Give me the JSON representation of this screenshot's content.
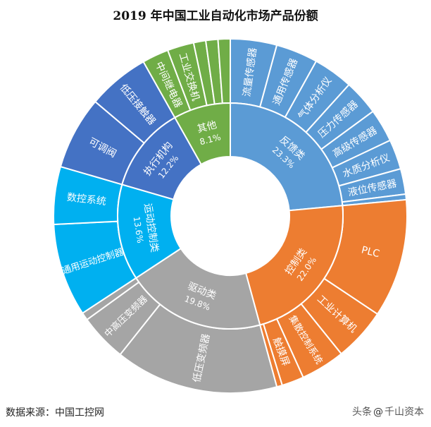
{
  "chart_data": {
    "type": "sunburst",
    "title": "2019 年中国工业自动化市场产品份额",
    "categories": [
      {
        "name": "反馈类",
        "value": 23.3,
        "value_label": "23.3%",
        "color": "#5b9bd5",
        "children": [
          {
            "name": "流量传感器",
            "value": 4.2
          },
          {
            "name": "通用传感器",
            "value": 3.8
          },
          {
            "name": "气体分析仪",
            "value": 3.6
          },
          {
            "name": "压力传感器",
            "value": 3.2
          },
          {
            "name": "高级传感器",
            "value": 3.0
          },
          {
            "name": "水质分析仪",
            "value": 2.7
          },
          {
            "name": "液位传感器",
            "value": 2.3
          },
          {
            "name": "",
            "value": 0.5
          }
        ]
      },
      {
        "name": "控制类",
        "value": 22.0,
        "value_label": "22.0%",
        "color": "#ed7d31",
        "children": [
          {
            "name": "PLC",
            "value": 10.7
          },
          {
            "name": "工业计算机",
            "value": 4.8
          },
          {
            "name": "集散控制系统",
            "value": 4.0
          },
          {
            "name": "触摸屏",
            "value": 2.0
          },
          {
            "name": "",
            "value": 0.5
          }
        ]
      },
      {
        "name": "驱动类",
        "value": 19.8,
        "value_label": "19.8%",
        "color": "#a5a5a5",
        "children": [
          {
            "name": "低压变频器",
            "value": 14.8
          },
          {
            "name": "中高压变频器",
            "value": 4.3
          },
          {
            "name": "",
            "value": 0.7
          }
        ]
      },
      {
        "name": "运动控制类",
        "value": 13.6,
        "value_label": "13.6%",
        "color": "#00b0f0",
        "children": [
          {
            "name": "通用运动控制器",
            "value": 8.4
          },
          {
            "name": "数控系统",
            "value": 5.2
          }
        ]
      },
      {
        "name": "执行机构",
        "value": 12.2,
        "value_label": "12.2%",
        "color": "#4472c4",
        "children": [
          {
            "name": "可调阀",
            "value": 6.6
          },
          {
            "name": "低压接触器",
            "value": 5.6
          }
        ]
      },
      {
        "name": "其他",
        "value": 8.1,
        "value_label": "8.1%",
        "color": "#70ad47",
        "children": [
          {
            "name": "中间继电器",
            "value": 2.4
          },
          {
            "name": "工业交换机",
            "value": 2.4
          },
          {
            "name": "",
            "value": 1.1
          },
          {
            "name": "",
            "value": 1.1
          },
          {
            "name": "",
            "value": 1.1
          }
        ]
      }
    ]
  },
  "footer": {
    "source": "数据来源：中国工控网",
    "watermark_left": "头条",
    "watermark_icon": "@",
    "watermark_right": "千山资本"
  }
}
